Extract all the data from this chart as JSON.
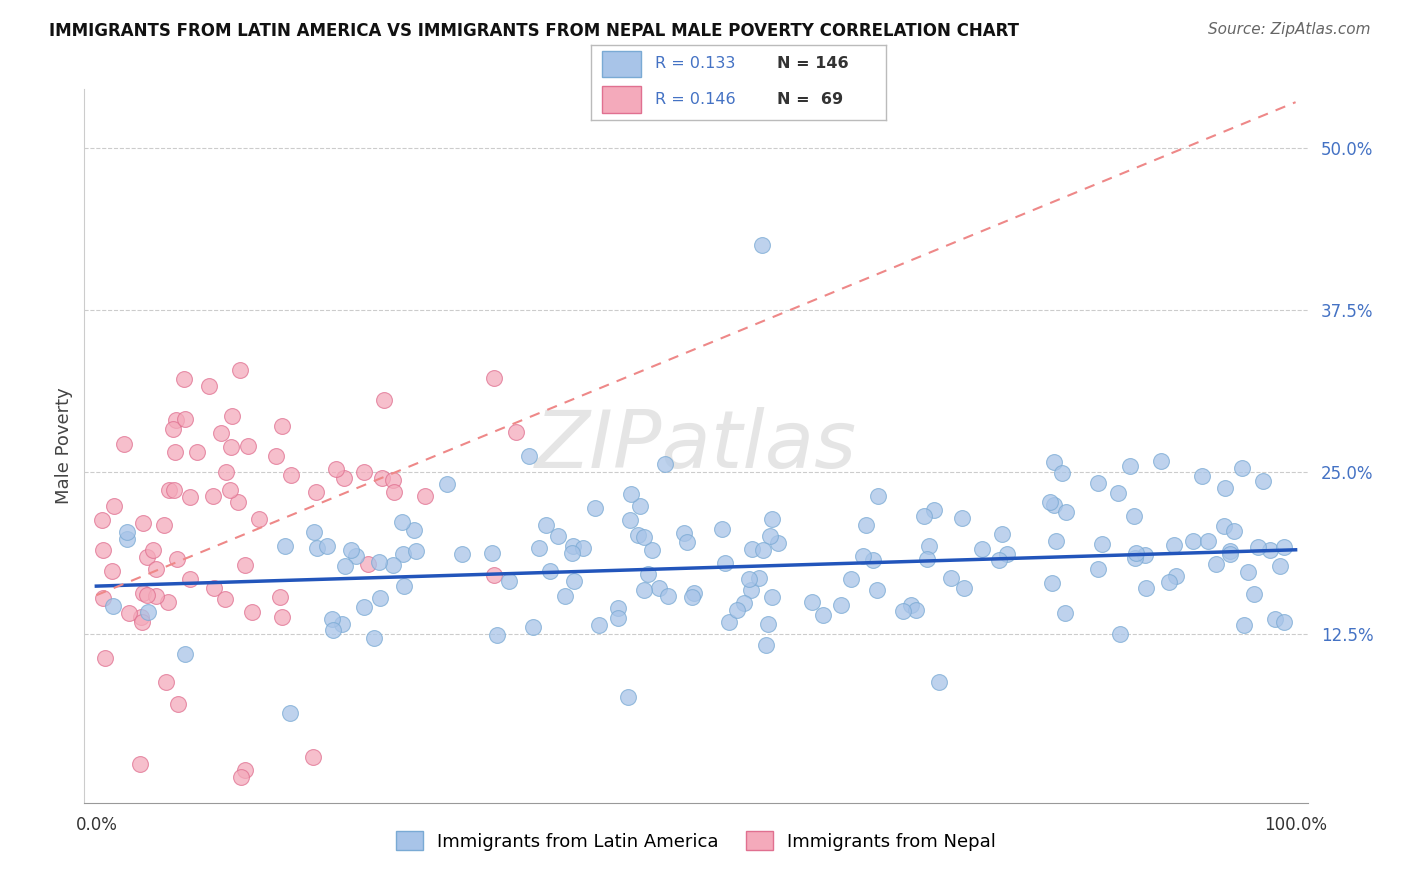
{
  "title": "IMMIGRANTS FROM LATIN AMERICA VS IMMIGRANTS FROM NEPAL MALE POVERTY CORRELATION CHART",
  "source": "Source: ZipAtlas.com",
  "ylabel": "Male Poverty",
  "ytick_vals": [
    0.125,
    0.25,
    0.375,
    0.5
  ],
  "ytick_labels": [
    "12.5%",
    "25.0%",
    "37.5%",
    "50.0%"
  ],
  "xlim": [
    0.0,
    1.0
  ],
  "ylim": [
    0.0,
    0.54
  ],
  "legend_r1": "R = 0.133",
  "legend_n1": "N = 146",
  "legend_r2": "R = 0.146",
  "legend_n2": "N =  69",
  "series1_color": "#A8C4E8",
  "series1_edge": "#7AAAD4",
  "series2_color": "#F4AABB",
  "series2_edge": "#E07090",
  "line1_color": "#2255BB",
  "line2_color": "#EE8888",
  "watermark": "ZIPatlas",
  "background_color": "#FFFFFF",
  "title_color": "#111111",
  "source_color": "#666666",
  "ylabel_color": "#444444",
  "ytick_color": "#4472C4",
  "xtick_color": "#333333"
}
